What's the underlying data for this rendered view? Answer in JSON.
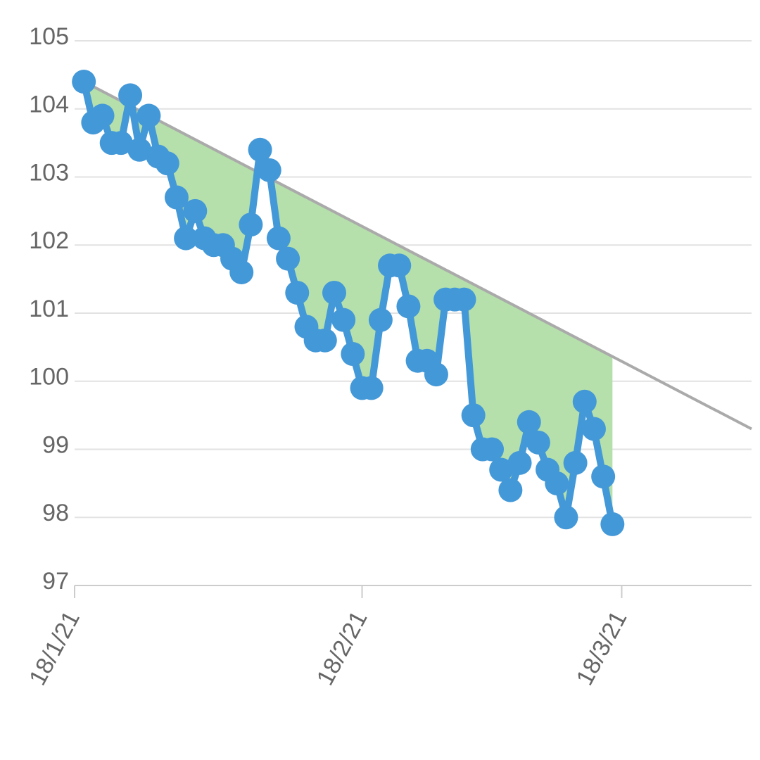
{
  "chart_data": {
    "type": "line",
    "x": [
      "2021-01-19",
      "2021-01-20",
      "2021-01-21",
      "2021-01-22",
      "2021-01-23",
      "2021-01-24",
      "2021-01-25",
      "2021-01-26",
      "2021-01-27",
      "2021-01-28",
      "2021-01-29",
      "2021-01-30",
      "2021-01-31",
      "2021-02-01",
      "2021-02-02",
      "2021-02-03",
      "2021-02-04",
      "2021-02-05",
      "2021-02-06",
      "2021-02-07",
      "2021-02-08",
      "2021-02-09",
      "2021-02-10",
      "2021-02-11",
      "2021-02-12",
      "2021-02-13",
      "2021-02-14",
      "2021-02-15",
      "2021-02-16",
      "2021-02-17",
      "2021-02-18",
      "2021-02-19",
      "2021-02-20",
      "2021-02-21",
      "2021-02-22",
      "2021-02-23",
      "2021-02-24",
      "2021-02-25",
      "2021-02-26",
      "2021-02-27",
      "2021-02-28",
      "2021-03-01",
      "2021-03-02",
      "2021-03-03",
      "2021-03-04",
      "2021-03-05",
      "2021-03-06",
      "2021-03-07",
      "2021-03-08",
      "2021-03-09",
      "2021-03-10",
      "2021-03-11",
      "2021-03-12",
      "2021-03-13",
      "2021-03-14",
      "2021-03-15",
      "2021-03-16",
      "2021-03-17"
    ],
    "series": [
      {
        "color": "#4398d8",
        "values": [
          104.4,
          103.8,
          103.9,
          103.5,
          103.5,
          104.2,
          103.4,
          103.9,
          103.3,
          103.2,
          102.7,
          102.1,
          102.5,
          102.1,
          102.0,
          102.0,
          101.8,
          101.6,
          102.3,
          103.4,
          103.1,
          102.1,
          101.8,
          101.3,
          100.8,
          100.6,
          100.6,
          101.3,
          100.9,
          100.4,
          99.9,
          99.9,
          100.9,
          101.7,
          101.7,
          101.1,
          100.3,
          100.3,
          100.1,
          101.2,
          101.2,
          101.2,
          99.5,
          99.0,
          99.0,
          98.7,
          98.4,
          98.8,
          99.4,
          99.1,
          98.7,
          98.5,
          98.0,
          98.8,
          99.7,
          99.3,
          98.6,
          97.9
        ]
      }
    ],
    "trend": {
      "x": [
        "2021-01-19",
        "2021-04-01"
      ],
      "values": [
        104.4,
        99.3
      ],
      "color": "#aaaaaa"
    },
    "fill_color": "#b5e0ab",
    "xlim": [
      "2021-01-18",
      "2021-04-01"
    ],
    "xticks": [
      {
        "value": "2021-01-18",
        "label": "18/1/21"
      },
      {
        "value": "2021-02-18",
        "label": "18/2/21"
      },
      {
        "value": "2021-03-18",
        "label": "18/3/21"
      }
    ],
    "ylim": [
      97,
      105
    ],
    "yticks": [
      97,
      98,
      99,
      100,
      101,
      102,
      103,
      104,
      105
    ],
    "grid": true
  }
}
